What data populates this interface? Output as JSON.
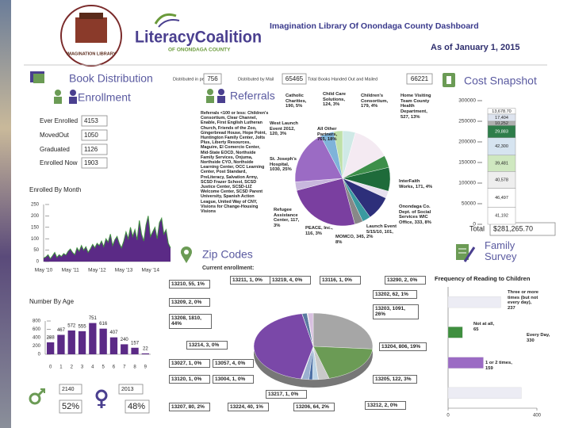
{
  "header": {
    "title": "Imagination Library Of Onondaga County Dashboard",
    "date": "As of January 1, 2015",
    "logo_name": "LiteracyCoalition",
    "logo_sub": "OF ONONDAGA COUNTY",
    "badge": "IMAGINATION LIBRARY"
  },
  "book_distribution": {
    "title": "Book Distribution",
    "fields": [
      {
        "label": "Distributed in person",
        "value": 756
      },
      {
        "label": "Distributed by Mail",
        "value": 65465
      },
      {
        "label": "Total Books Handed Out and Mailed",
        "value": 66221
      }
    ]
  },
  "enrollment": {
    "title": "Enrollment",
    "rows": [
      {
        "label": "Ever Enrolled",
        "value": 4153
      },
      {
        "label": "MovedOut",
        "value": 1050
      },
      {
        "label": "Graduated",
        "value": 1126
      },
      {
        "label": "Enrolled Now",
        "value": 1903
      }
    ]
  },
  "referrals": {
    "title": "Referrals",
    "note": "Referrals <100 or less: Children's Consortium, Clear Channel, Enable, First English Lutheran Church, Friends of the Zoo, Gingerbread House, Hope Point, Huntington Family Center, Jolts Plus, Liberty Resources, Maguire, El Comercio Center, Mid-State EOCD, Northside Family Services, Onjuma, Northside CYO, Northside Learning Center, OCC Learning Center, Post Standard, PreLiteracy, Salvation Army, SCSD Frazer School, SCSD Justice Center, SCSD-LIZ Welcome Center, SCSD Parent University, Spanish Action League, United Way of CNY, Visions for Change-Housing Visions"
  },
  "cost_snapshot": {
    "title": "Cost Snapshot",
    "total_label": "Total",
    "total": "$281,265.70"
  },
  "zip_codes": {
    "title": "Zip Codes",
    "subtitle": "Current enrollment:"
  },
  "family_survey": {
    "title": "Family Survey"
  },
  "gender": {
    "male": {
      "count": 2140,
      "percent": "52%"
    },
    "female": {
      "count": 2013,
      "percent": "48%"
    }
  },
  "chart_data": [
    {
      "type": "area",
      "title": "Enrolled By Month",
      "categories": [
        "May '10",
        null,
        null,
        null,
        null,
        null,
        null,
        null,
        null,
        null,
        null,
        null,
        "May '11",
        null,
        null,
        null,
        null,
        null,
        null,
        null,
        null,
        null,
        null,
        null,
        "May '12",
        null,
        null,
        null,
        null,
        null,
        null,
        null,
        null,
        null,
        null,
        null,
        "May '13",
        null,
        null,
        null,
        null,
        null,
        null,
        null,
        null,
        null,
        null,
        null,
        "May '14",
        null,
        null,
        null,
        null,
        null,
        null,
        null,
        null,
        null
      ],
      "values": [
        15,
        20,
        30,
        12,
        25,
        40,
        18,
        30,
        22,
        35,
        28,
        45,
        55,
        40,
        30,
        60,
        45,
        70,
        50,
        65,
        40,
        55,
        75,
        60,
        80,
        70,
        90,
        65,
        100,
        85,
        120,
        70,
        95,
        110,
        80,
        60,
        90,
        130,
        100,
        150,
        110,
        140,
        95,
        180,
        120,
        90,
        160,
        200,
        110,
        130,
        150,
        100,
        170,
        190,
        120,
        140,
        80,
        60
      ],
      "color": "#5b2a86",
      "line_color": "#3f8f3f",
      "ylim": [
        0,
        250
      ],
      "yticks": [
        0,
        50,
        100,
        150,
        200,
        250
      ]
    },
    {
      "type": "bar",
      "title": "Number By Age",
      "categories": [
        "0",
        "1",
        "2",
        "3",
        "4",
        "5",
        "6",
        "7",
        "8",
        "9"
      ],
      "values": [
        288,
        467,
        572,
        555,
        751,
        616,
        407,
        240,
        157,
        22
      ],
      "color": "#5b2a86",
      "ylim": [
        0,
        800
      ],
      "yticks": [
        0,
        200,
        400,
        600,
        800
      ]
    },
    {
      "type": "pie",
      "categories": [
        "Children's Consortium, 179, 4%",
        "Home Visiting Team County Health Department, 527, 13%",
        "InterFaith Works, 171, 4%",
        "Onondaga Co. Dept. of Social Services WIC Office, 333, 8%",
        "Launch Event 5/15/10, 101, 2%",
        "MOMCO, 345, 8%",
        "PEACE, Inc., 116, 3%",
        "Refugee Assistance Center, 117, 3%",
        "St. Joseph's Hospital, 1030, 25%",
        "West Launch Event 2012, 120, 3%",
        "All Other Partners, 765, 18%",
        "Catholic Charities, 190, 5%",
        "Child Care Solutions, 124, 3%"
      ],
      "values": [
        179,
        527,
        171,
        333,
        101,
        345,
        116,
        117,
        1030,
        120,
        765,
        190,
        124
      ],
      "colors": [
        "#cfe9e6",
        "#f4eaf2",
        "#3d8f4a",
        "#1e6b3a",
        "#e7e0ef",
        "#2d2f7a",
        "#3a9aa0",
        "#888888",
        "#7a3fa0",
        "#c8b7dd",
        "#9b6bc4",
        "#7fb3d9",
        "#bfe0a8"
      ]
    },
    {
      "type": "stacked-bar",
      "series": [
        {
          "color": "#ffffff",
          "values": [
            41192
          ],
          "value_labels": [
            "41,192"
          ]
        },
        {
          "color": "#ffffff",
          "values": [
            46497
          ],
          "value_labels": [
            "46,497"
          ]
        },
        {
          "color": "#eeeeee",
          "values": [
            40578
          ],
          "value_labels": [
            "40,578"
          ]
        },
        {
          "color": "#cfe8c0",
          "values": [
            39481
          ],
          "value_labels": [
            "39,481"
          ]
        },
        {
          "color": "#d6e4f0",
          "values": [
            42300
          ],
          "value_labels": [
            "42,300"
          ]
        },
        {
          "color": "#2e7d4a",
          "values": [
            29883
          ],
          "value_labels": [
            "29,883"
          ]
        },
        {
          "color": "#b0b0b0",
          "values": [
            10252
          ],
          "value_labels": [
            "10,252"
          ]
        },
        {
          "color": "#dde3ee",
          "values": [
            17404
          ],
          "value_labels": [
            "17,404"
          ]
        },
        {
          "color": "#ffffff",
          "values": [
            13678.7
          ],
          "value_labels": [
            "13,678.70"
          ]
        }
      ],
      "ylim": [
        0,
        300000
      ],
      "yticks": [
        0,
        50000,
        100000,
        150000,
        200000,
        250000,
        300000
      ]
    },
    {
      "type": "pie",
      "tilted": true,
      "categories": [
        "13203, 1091, 26%",
        "13204, 806, 19%",
        "13205, 122, 3%",
        "13212, 2, 0%",
        "13206, 64, 2%",
        "13224, 40, 1%",
        "13207, 80, 2%",
        "13217, 1, 0%",
        "13004, 1, 0%",
        "13120, 1, 0%",
        "13057, 4, 0%",
        "13027, 1, 0%",
        "13214, 3, 0%",
        "13208, 1810, 44%",
        "13209, 2, 0%",
        "13210, 55, 1%",
        "13211, 1, 0%",
        "13219, 4, 0%",
        "13116, 1, 0%",
        "13290, 2, 0%",
        "13202, 62, 1%"
      ],
      "values": [
        1091,
        806,
        122,
        2,
        64,
        40,
        80,
        1,
        1,
        1,
        4,
        1,
        3,
        1810,
        2,
        55,
        1,
        4,
        1,
        2,
        62
      ],
      "colors": [
        "#a6a6a6",
        "#6b9b55",
        "#c9c9c9",
        "#e0d0c0",
        "#bcd4e6",
        "#4b6fa5",
        "#9ab0d0",
        "#f0c040",
        "#d06060",
        "#60a0a0",
        "#a060a0",
        "#80c080",
        "#2e4a7a",
        "#7a48a8",
        "#b090d0",
        "#5a7aa0",
        "#e08040",
        "#40a060",
        "#a04040",
        "#304030",
        "#d8c0e0"
      ]
    },
    {
      "type": "hbar",
      "title": "Frequency of Reading to Children",
      "categories": [
        "Three or more times (but not every day), 237",
        "Not at all, 65",
        "1 or 2 times, 159",
        "Every Day, 330"
      ],
      "values": [
        237,
        65,
        159,
        330
      ],
      "colors": [
        "#ececf4",
        "#3f8f3f",
        "#9b6bc4",
        "#ececf4"
      ],
      "xlim": [
        0,
        400
      ],
      "xticks": [
        0,
        400
      ]
    }
  ]
}
